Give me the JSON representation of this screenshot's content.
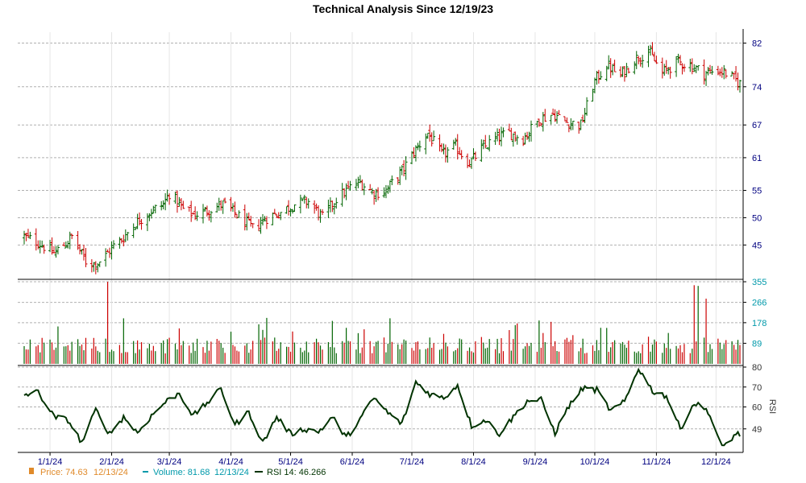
{
  "chart_data": {
    "type": "line",
    "title": "Technical Analysis Since 12/19/23",
    "colors": {
      "up": "#006400",
      "down": "#cc0000",
      "price_axis": "#000080",
      "volume_axis": "#0099aa",
      "rsi_line": "#003300",
      "rsi_axis": "#333333",
      "grid": "#b0b0b0"
    },
    "x_axis": {
      "ticks": [
        "1/1/24",
        "2/1/24",
        "3/1/24",
        "4/1/24",
        "5/1/24",
        "6/1/24",
        "7/1/24",
        "8/1/24",
        "9/1/24",
        "10/1/24",
        "11/1/24",
        "12/1/24"
      ],
      "tick_dates": [
        "2024-01-01",
        "2024-02-01",
        "2024-03-01",
        "2024-04-01",
        "2024-05-01",
        "2024-06-01",
        "2024-07-01",
        "2024-08-01",
        "2024-09-01",
        "2024-10-01",
        "2024-11-01",
        "2024-12-01"
      ],
      "range": [
        "2023-12-19",
        "2024-12-13"
      ]
    },
    "panels": [
      {
        "name": "price",
        "type": "ohlc",
        "ticks": [
          82,
          74,
          67,
          61,
          55,
          50,
          45
        ],
        "ylim": [
          39,
          84
        ],
        "grid": true
      },
      {
        "name": "volume",
        "type": "bar",
        "ticks": [
          355,
          266,
          178,
          89
        ],
        "ylim": [
          0,
          355
        ],
        "grid": true
      },
      {
        "name": "rsi",
        "type": "line",
        "label": "RSI",
        "ticks": [
          80,
          70,
          60,
          49
        ],
        "ylim": [
          38,
          80
        ],
        "grid": true
      }
    ],
    "series": [
      {
        "name": "Price",
        "anchor_dates": [
          "2023-12-19",
          "2023-12-26",
          "2024-01-03",
          "2024-01-08",
          "2024-01-12",
          "2024-01-19",
          "2024-01-24",
          "2024-01-29",
          "2024-02-01",
          "2024-02-06",
          "2024-02-13",
          "2024-02-20",
          "2024-02-27",
          "2024-03-01",
          "2024-03-08",
          "2024-03-14",
          "2024-03-21",
          "2024-03-28",
          "2024-04-04",
          "2024-04-12",
          "2024-04-19",
          "2024-04-26",
          "2024-05-03",
          "2024-05-10",
          "2024-05-17",
          "2024-05-24",
          "2024-05-31",
          "2024-06-05",
          "2024-06-12",
          "2024-06-18",
          "2024-06-26",
          "2024-07-02",
          "2024-07-09",
          "2024-07-16",
          "2024-07-23",
          "2024-07-30",
          "2024-08-05",
          "2024-08-12",
          "2024-08-19",
          "2024-08-26",
          "2024-09-03",
          "2024-09-10",
          "2024-09-17",
          "2024-09-24",
          "2024-10-01",
          "2024-10-07",
          "2024-10-14",
          "2024-10-21",
          "2024-10-28",
          "2024-11-04",
          "2024-11-11",
          "2024-11-18",
          "2024-11-25",
          "2024-12-02",
          "2024-12-06",
          "2024-12-13"
        ],
        "anchor_close": [
          46.5,
          45.5,
          43.5,
          45.0,
          46.5,
          42.0,
          41.5,
          43.0,
          44.5,
          46.0,
          49.0,
          51.0,
          52.5,
          54.5,
          51.5,
          50.5,
          51.5,
          52.5,
          50.5,
          48.0,
          50.0,
          51.0,
          52.5,
          53.0,
          50.0,
          53.5,
          55.5,
          56.5,
          54.5,
          55.0,
          58.5,
          62.0,
          65.5,
          61.5,
          63.0,
          60.0,
          62.5,
          64.5,
          65.5,
          64.5,
          68.0,
          69.0,
          67.5,
          67.0,
          75.0,
          78.0,
          76.0,
          79.0,
          80.5,
          76.5,
          78.5,
          78.0,
          76.5,
          77.0,
          76.5,
          74.63
        ],
        "last_value": 74.63,
        "last_date": "12/13/24"
      },
      {
        "name": "Volume",
        "last_value": 81.68,
        "last_date": "12/13/24",
        "spikes": [
          {
            "date": "2024-01-30",
            "value": 355
          },
          {
            "date": "2024-11-20",
            "value": 340
          },
          {
            "date": "2024-11-22",
            "value": 337
          },
          {
            "date": "2024-11-26",
            "value": 282
          }
        ]
      },
      {
        "name": "RSI 14",
        "anchor_dates": [
          "2023-12-19",
          "2023-12-26",
          "2024-01-03",
          "2024-01-10",
          "2024-01-17",
          "2024-01-24",
          "2024-01-31",
          "2024-02-07",
          "2024-02-14",
          "2024-02-21",
          "2024-02-28",
          "2024-03-06",
          "2024-03-13",
          "2024-03-20",
          "2024-03-27",
          "2024-04-03",
          "2024-04-10",
          "2024-04-17",
          "2024-04-24",
          "2024-05-01",
          "2024-05-08",
          "2024-05-15",
          "2024-05-22",
          "2024-05-29",
          "2024-06-05",
          "2024-06-12",
          "2024-06-19",
          "2024-06-26",
          "2024-07-03",
          "2024-07-10",
          "2024-07-17",
          "2024-07-24",
          "2024-07-31",
          "2024-08-07",
          "2024-08-14",
          "2024-08-21",
          "2024-08-28",
          "2024-09-04",
          "2024-09-11",
          "2024-09-18",
          "2024-09-25",
          "2024-10-02",
          "2024-10-09",
          "2024-10-16",
          "2024-10-23",
          "2024-10-30",
          "2024-11-06",
          "2024-11-13",
          "2024-11-20",
          "2024-11-27",
          "2024-12-04",
          "2024-12-11",
          "2024-12-13"
        ],
        "anchor_values": [
          66.0,
          67.5,
          55.0,
          53.5,
          42.0,
          58.5,
          46.5,
          55.0,
          47.0,
          55.5,
          62.5,
          67.0,
          55.5,
          62.0,
          69.0,
          51.0,
          57.5,
          42.0,
          55.0,
          46.5,
          49.0,
          47.5,
          55.0,
          44.5,
          54.0,
          64.5,
          57.0,
          51.5,
          72.5,
          66.5,
          64.5,
          71.0,
          50.5,
          53.5,
          46.5,
          55.0,
          63.0,
          63.5,
          47.0,
          60.5,
          69.5,
          68.5,
          58.0,
          62.5,
          79.5,
          68.0,
          65.5,
          49.0,
          62.0,
          58.0,
          39.5,
          46.5,
          46.266
        ],
        "last_value": 46.266
      }
    ],
    "legend": [
      {
        "icon": "price-swatch",
        "label": "Price: 74.63",
        "date": "12/13/24",
        "color": "#e08a2a"
      },
      {
        "icon": "volume-swatch",
        "label": "Volume: 81.68",
        "date": "12/13/24",
        "color": "#0099aa"
      },
      {
        "icon": "rsi-swatch",
        "label": "RSI 14: 46.266",
        "date": "",
        "color": "#003300"
      }
    ]
  }
}
